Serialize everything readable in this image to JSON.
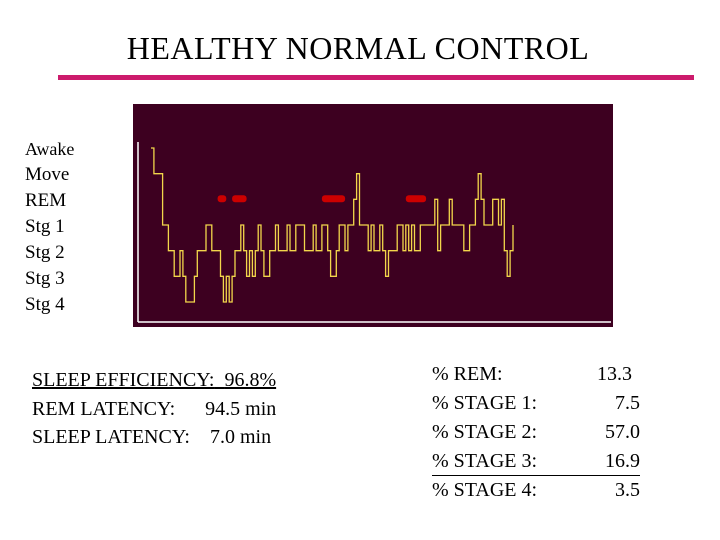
{
  "title": "HEALTHY NORMAL CONTROL",
  "stages": [
    "Awake",
    "Move",
    "REM",
    "Stg 1",
    "Stg 2",
    "Stg 3",
    "Stg 4"
  ],
  "colors": {
    "title_rule": "#cc1b6c",
    "plot_bg": "#3d0020",
    "trace": "#f2d64b",
    "rem_marker": "#cc0000",
    "axis": "#ffffff"
  },
  "sleep_metrics": {
    "efficiency_label": "SLEEP EFFICIENCY:",
    "efficiency_value": "96.8%",
    "rem_latency_label": "REM LATENCY:",
    "rem_latency_value": "94.5 min",
    "sleep_latency_label": "SLEEP LATENCY:",
    "sleep_latency_value": "7.0 min"
  },
  "stage_percentages": [
    {
      "label": "%  REM:",
      "value": "13.3"
    },
    {
      "label": "% STAGE 1:",
      "value": "7.5"
    },
    {
      "label": "% STAGE 2:",
      "value": "57.0"
    },
    {
      "label": "% STAGE 3:",
      "value": "16.9"
    },
    {
      "label": "% STAGE 4:",
      "value": "3.5"
    }
  ],
  "chart_data": {
    "type": "line",
    "title": "",
    "xlabel": "",
    "ylabel": "",
    "stages": [
      "Awake",
      "Move",
      "REM",
      "Stg 1",
      "Stg 2",
      "Stg 3",
      "Stg 4"
    ],
    "grid": false,
    "series": [
      {
        "values": [
          0,
          1,
          1,
          1,
          3,
          3,
          4,
          4,
          5,
          5,
          4,
          5,
          6,
          6,
          6,
          5,
          4,
          4,
          4,
          3,
          3,
          4,
          4,
          4,
          5,
          6,
          5,
          6,
          5,
          4,
          4,
          3,
          4,
          5,
          4,
          5,
          4,
          3,
          4,
          5,
          5,
          4,
          4,
          3,
          4,
          4,
          4,
          3,
          4,
          4,
          3,
          3,
          3,
          4,
          4,
          4,
          3,
          4,
          4,
          3,
          3,
          4,
          5,
          5,
          4,
          3,
          3,
          4,
          3,
          3,
          2,
          1,
          3,
          3,
          3,
          4,
          3,
          4,
          4,
          3,
          4,
          5,
          4,
          4,
          4,
          3,
          3,
          4,
          3,
          4,
          3,
          4,
          4,
          3,
          3,
          3,
          3,
          3,
          2,
          4,
          3,
          3,
          3,
          2,
          3,
          3,
          3,
          3,
          4,
          4,
          3,
          3,
          2,
          1,
          2,
          3,
          3,
          3,
          2,
          2,
          3,
          2,
          4,
          5,
          4,
          3
        ]
      }
    ],
    "rem_periods": [
      [
        23,
        26
      ],
      [
        28,
        33
      ],
      [
        59,
        67
      ],
      [
        88,
        95
      ]
    ]
  }
}
